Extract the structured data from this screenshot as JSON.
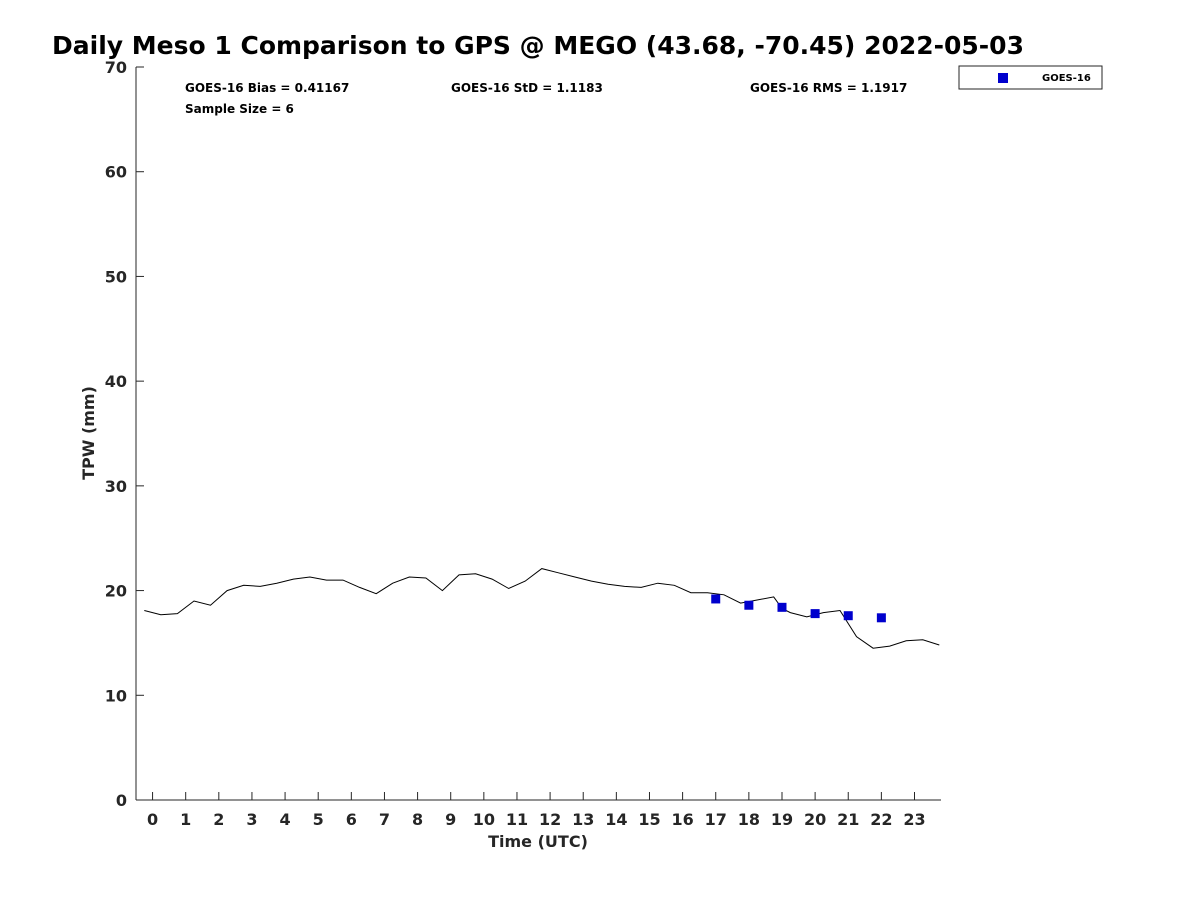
{
  "chart_data": {
    "type": "line",
    "title": "Daily Meso 1 Comparison to GPS @ MEGO (43.68, -70.45) 2022-05-03",
    "xlabel": "Time (UTC)",
    "ylabel": "TPW (mm)",
    "xlim": [
      -0.5,
      23.8
    ],
    "ylim": [
      0,
      70
    ],
    "x_ticks": [
      "0",
      "1",
      "2",
      "3",
      "4",
      "5",
      "6",
      "7",
      "8",
      "9",
      "10",
      "11",
      "12",
      "13",
      "14",
      "15",
      "16",
      "17",
      "18",
      "19",
      "20",
      "21",
      "22",
      "23"
    ],
    "y_ticks": [
      "0",
      "10",
      "20",
      "30",
      "40",
      "50",
      "60",
      "70"
    ],
    "grid": false,
    "legend_position": "top-right, outside plot",
    "series": [
      {
        "color": "#000000",
        "marker": "line",
        "x": [
          -0.25,
          0.25,
          0.75,
          1.25,
          1.75,
          2.25,
          2.75,
          3.25,
          3.75,
          4.25,
          4.75,
          5.25,
          5.75,
          6.25,
          6.75,
          7.25,
          7.75,
          8.25,
          8.75,
          9.25,
          9.75,
          10.25,
          10.75,
          11.25,
          11.75,
          12.25,
          12.75,
          13.25,
          13.75,
          14.25,
          14.75,
          15.25,
          15.75,
          16.25,
          16.75,
          17.25,
          17.75,
          18.25,
          18.75,
          19.0,
          19.25,
          19.75,
          20.25,
          20.75,
          21.25,
          21.75,
          22.25,
          22.75,
          23.25,
          23.75
        ],
        "y": [
          18.1,
          17.7,
          17.8,
          19.0,
          18.6,
          20.0,
          20.5,
          20.4,
          20.7,
          21.1,
          21.3,
          21.0,
          21.0,
          20.3,
          19.7,
          20.7,
          21.3,
          21.2,
          20.0,
          21.5,
          21.6,
          21.1,
          20.2,
          20.9,
          22.1,
          21.7,
          21.3,
          20.9,
          20.6,
          20.4,
          20.3,
          20.7,
          20.5,
          19.8,
          19.8,
          19.6,
          18.8,
          19.1,
          19.4,
          18.3,
          17.9,
          17.5,
          17.9,
          18.1,
          15.6,
          14.5,
          14.7,
          15.2,
          15.3,
          14.8
        ]
      },
      {
        "name": "GOES-16",
        "color": "#0000cd",
        "marker": "square",
        "x": [
          17,
          18,
          19,
          20,
          21,
          22
        ],
        "y": [
          19.2,
          18.6,
          18.4,
          17.8,
          17.6,
          17.4
        ]
      }
    ],
    "annotations": {
      "bias": "GOES-16 Bias = 0.41167",
      "std": "GOES-16 StD = 1.1183",
      "rms": "GOES-16 RMS = 1.1917",
      "sample_size": "Sample Size = 6"
    }
  }
}
